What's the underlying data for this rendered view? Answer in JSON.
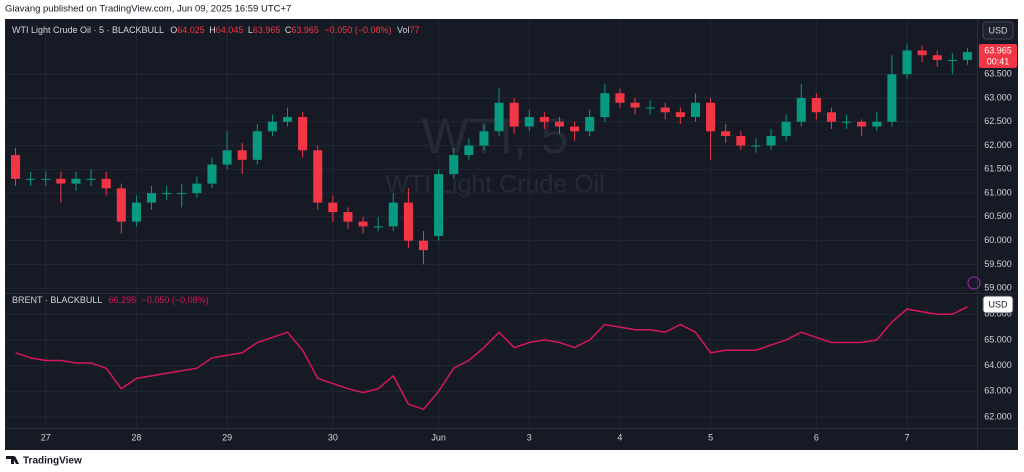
{
  "header": "Giavang published on TradingView.com, Jun 09, 2025 16:59 UTC+7",
  "footer": "TradingView",
  "chart_data": [
    {
      "type": "candlestick",
      "title": "WTI Light Crude Oil · 5 · BLACKBULL",
      "watermark": "WTI, 5",
      "watermark_subtitle": "WTI Light Crude Oil",
      "legend_values": [
        {
          "label": "O",
          "value": "64.025"
        },
        {
          "label": "H",
          "value": "64.045"
        },
        {
          "label": "L",
          "value": "63.965"
        },
        {
          "label": "C",
          "value": "63.965"
        }
      ],
      "change": "−0.050 (−0.08%)",
      "volume": {
        "label": "Vol",
        "value": "77"
      },
      "currency": "USD",
      "countdown": "00:41",
      "up_color": "#089981",
      "down_color": "#f23645",
      "open": [
        61.8,
        61.3,
        61.3,
        61.3,
        61.2,
        61.3,
        61.3,
        61.1,
        60.4,
        60.8,
        61.0,
        61.0,
        61.0,
        61.2,
        61.6,
        61.9,
        61.7,
        62.3,
        62.5,
        62.6,
        61.9,
        60.8,
        60.6,
        60.4,
        60.3,
        60.3,
        60.8,
        60.0,
        60.1,
        61.4,
        61.8,
        62.0,
        62.3,
        62.9,
        62.4,
        62.6,
        62.5,
        62.4,
        62.3,
        62.6,
        63.1,
        62.9,
        62.8,
        62.8,
        62.7,
        62.6,
        62.9,
        62.3,
        62.2,
        62.0,
        62.0,
        62.2,
        62.5,
        63.0,
        62.7,
        62.5,
        62.5,
        62.4,
        62.5,
        63.5,
        64.0,
        63.9,
        63.8,
        63.8
      ],
      "high": [
        61.95,
        61.45,
        61.45,
        61.45,
        61.45,
        61.5,
        61.45,
        61.2,
        60.95,
        61.15,
        61.15,
        61.2,
        61.35,
        61.75,
        62.3,
        62.05,
        62.45,
        62.65,
        62.8,
        62.7,
        62.0,
        60.95,
        60.7,
        60.5,
        60.5,
        61.0,
        61.1,
        60.2,
        61.5,
        61.95,
        62.15,
        62.45,
        63.2,
        63.0,
        62.75,
        62.7,
        62.6,
        62.5,
        62.75,
        63.3,
        63.2,
        63.0,
        62.95,
        62.9,
        62.8,
        63.1,
        63.0,
        62.45,
        62.3,
        62.15,
        62.35,
        62.65,
        63.3,
        63.1,
        62.8,
        62.65,
        62.55,
        62.7,
        63.9,
        64.15,
        64.1,
        64.0,
        63.95,
        64.05
      ],
      "low": [
        61.15,
        61.15,
        61.15,
        60.8,
        61.05,
        61.15,
        60.95,
        60.15,
        60.3,
        60.65,
        60.85,
        60.7,
        60.9,
        61.1,
        61.5,
        61.4,
        61.6,
        62.2,
        62.4,
        61.75,
        60.65,
        60.4,
        60.25,
        60.15,
        60.2,
        60.2,
        59.85,
        59.5,
        60.0,
        61.3,
        61.7,
        61.9,
        62.2,
        62.25,
        62.3,
        62.35,
        62.25,
        62.1,
        62.2,
        62.5,
        62.8,
        62.65,
        62.65,
        62.55,
        62.45,
        62.5,
        61.7,
        62.05,
        61.9,
        61.85,
        61.9,
        62.1,
        62.4,
        62.55,
        62.35,
        62.35,
        62.2,
        62.3,
        62.4,
        63.4,
        63.75,
        63.65,
        63.5,
        63.7
      ],
      "close": [
        61.3,
        61.3,
        61.3,
        61.2,
        61.3,
        61.3,
        61.1,
        60.4,
        60.8,
        61.0,
        61.0,
        61.0,
        61.2,
        61.6,
        61.9,
        61.7,
        62.3,
        62.5,
        62.6,
        61.9,
        60.8,
        60.6,
        60.4,
        60.3,
        60.3,
        60.8,
        60.0,
        59.8,
        61.4,
        61.8,
        62.0,
        62.3,
        62.9,
        62.4,
        62.6,
        62.5,
        62.4,
        62.3,
        62.6,
        63.1,
        62.9,
        62.8,
        62.8,
        62.7,
        62.6,
        62.9,
        62.3,
        62.2,
        62.0,
        62.0,
        62.2,
        62.5,
        63.0,
        62.7,
        62.5,
        62.5,
        62.4,
        62.5,
        63.5,
        64.0,
        63.9,
        63.8,
        63.8,
        63.965
      ],
      "ylim": [
        58.92,
        64.64
      ],
      "yticks": [
        {
          "value": 59,
          "label": "59.000"
        },
        {
          "value": 59.5,
          "label": "59.500"
        },
        {
          "value": 60,
          "label": "60.000"
        },
        {
          "value": 60.5,
          "label": "60.500"
        },
        {
          "value": 61,
          "label": "61.000"
        },
        {
          "value": 61.5,
          "label": "61.500"
        },
        {
          "value": 62,
          "label": "62.000"
        },
        {
          "value": 62.5,
          "label": "62.500"
        },
        {
          "value": 63,
          "label": "63.000"
        },
        {
          "value": 63.5,
          "label": "63.500"
        }
      ],
      "grid": true
    },
    {
      "type": "line",
      "title": "BRENT · BLACKBULL",
      "last": "66.295",
      "change": "−0.050 (−0.08%)",
      "currency": "USD",
      "color": "#d6165e",
      "categories": [
        null,
        null,
        "27",
        null,
        null,
        null,
        null,
        null,
        "28",
        null,
        null,
        null,
        null,
        null,
        "29",
        null,
        null,
        null,
        null,
        null,
        null,
        "30",
        null,
        null,
        null,
        null,
        null,
        null,
        "Jun",
        null,
        null,
        null,
        null,
        null,
        "3",
        null,
        null,
        null,
        null,
        null,
        "4",
        null,
        null,
        null,
        null,
        null,
        "5",
        null,
        null,
        null,
        null,
        null,
        null,
        "6",
        null,
        null,
        null,
        null,
        null,
        "7",
        null,
        null,
        null,
        null
      ],
      "values": [
        64.5,
        64.3,
        64.2,
        64.2,
        64.1,
        64.1,
        63.9,
        63.1,
        63.5,
        63.6,
        63.7,
        63.8,
        63.9,
        64.3,
        64.4,
        64.5,
        64.9,
        65.1,
        65.3,
        64.6,
        63.5,
        63.3,
        63.1,
        62.95,
        63.1,
        63.6,
        62.5,
        62.3,
        63.0,
        63.9,
        64.2,
        64.7,
        65.3,
        64.7,
        64.9,
        65.0,
        64.9,
        64.7,
        65.0,
        65.6,
        65.5,
        65.4,
        65.4,
        65.3,
        65.6,
        65.3,
        64.5,
        64.6,
        64.6,
        64.6,
        64.8,
        65.0,
        65.3,
        65.1,
        64.9,
        64.9,
        64.9,
        65.0,
        65.7,
        66.2,
        66.1,
        66.0,
        66.0,
        66.295
      ],
      "ylim": [
        61.57,
        66.75
      ],
      "yticks": [
        {
          "value": 62,
          "label": "62.000"
        },
        {
          "value": 63,
          "label": "63.000"
        },
        {
          "value": 64,
          "label": "64.000"
        },
        {
          "value": 65,
          "label": "65.000"
        },
        {
          "value": 66,
          "label": "66.000"
        }
      ],
      "grid": true
    }
  ]
}
